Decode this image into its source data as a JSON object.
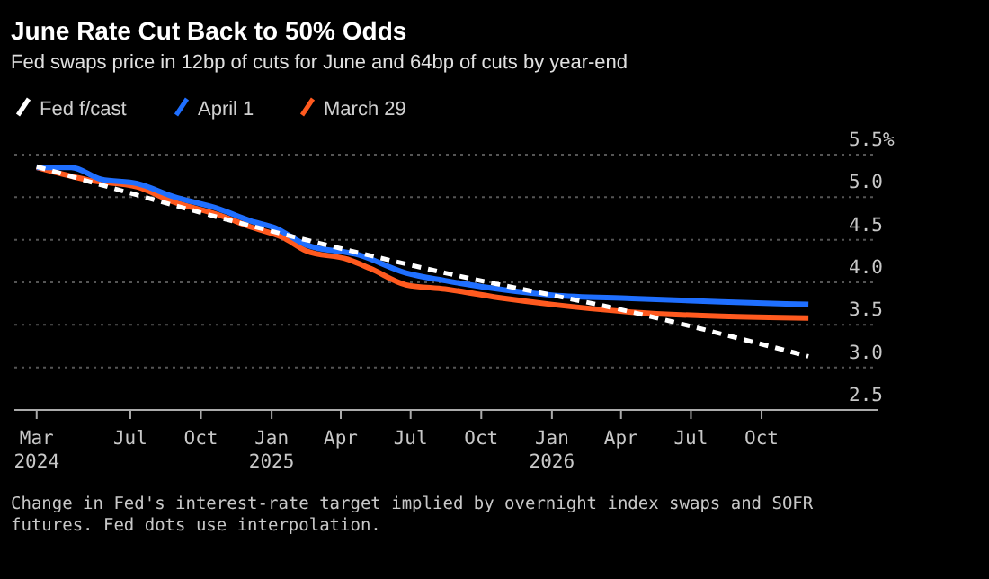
{
  "chart_data": {
    "type": "line",
    "title": "June Rate Cut Back to 50% Odds",
    "subtitle": "Fed swaps price in 12bp of cuts for June and 64bp of cuts by year-end",
    "annotations": [
      "Change in Fed's interest-rate target implied by overnight index swaps and SOFR futures. Fed dots use interpolation."
    ],
    "xlim": [
      "2024-02",
      "2027-03"
    ],
    "xticks": [
      {
        "value": "2024-03",
        "label": "Mar 2024"
      },
      {
        "value": "2024-07",
        "label": "Jul"
      },
      {
        "value": "2024-10",
        "label": "Oct"
      },
      {
        "value": "2025-01",
        "label": "Jan 2025"
      },
      {
        "value": "2025-04",
        "label": "Apr"
      },
      {
        "value": "2025-07",
        "label": "Jul"
      },
      {
        "value": "2025-10",
        "label": "Oct"
      },
      {
        "value": "2026-01",
        "label": "Jan 2026"
      },
      {
        "value": "2026-04",
        "label": "Apr"
      },
      {
        "value": "2026-07",
        "label": "Jul"
      },
      {
        "value": "2026-10",
        "label": "Oct"
      }
    ],
    "ylim": [
      2.5,
      5.5
    ],
    "yticks": [
      2.5,
      {
        "value": 3,
        "label": "3.0"
      },
      3.5,
      {
        "value": 4,
        "label": "4.0"
      },
      4.5,
      {
        "value": 5,
        "label": "5.0"
      },
      {
        "value": 5.5,
        "label": "5.5%"
      }
    ],
    "grid": "y",
    "legend": "top left",
    "series": [
      {
        "name": "Fed f/cast",
        "color": "#ffffff",
        "line_style": "dashed",
        "x": [
          "2024-03",
          "2025-01",
          "2025-08-15",
          "2026-04-15",
          "2026-12"
        ],
        "values": [
          5.36,
          4.6,
          4.11,
          3.65,
          3.13
        ]
      },
      {
        "name": "April 1",
        "color": "#1f6fff",
        "line_style": "solid",
        "x": [
          "2024-03",
          "2024-04-15",
          "2024-05-24",
          "2024-07-10",
          "2024-08-25",
          "2024-10-25",
          "2024-12-05",
          "2025-01-05",
          "2025-02-15",
          "2025-04-25",
          "2025-06-25",
          "2025-08-15",
          "2025-11-01",
          "2026-01-01",
          "2026-04-15",
          "2026-08-10",
          "2026-12"
        ],
        "values": [
          5.35,
          5.35,
          5.21,
          5.16,
          5.01,
          4.86,
          4.72,
          4.64,
          4.44,
          4.32,
          4.11,
          4.02,
          3.91,
          3.85,
          3.81,
          3.77,
          3.74
        ]
      },
      {
        "name": "March 29",
        "color": "#ff5a1f",
        "line_style": "solid",
        "x": [
          "2024-03",
          "2024-05-08",
          "2024-07-10",
          "2024-08-25",
          "2024-10-25",
          "2024-12-05",
          "2025-01-15",
          "2025-02-15",
          "2025-04-10",
          "2025-05-10",
          "2025-06-25",
          "2025-08-15",
          "2025-11-01",
          "2026-01-01",
          "2026-04-15",
          "2026-08-10",
          "2026-12"
        ],
        "values": [
          5.35,
          5.2,
          5.12,
          4.95,
          4.79,
          4.65,
          4.53,
          4.37,
          4.27,
          4.16,
          3.97,
          3.92,
          3.81,
          3.74,
          3.65,
          3.6,
          3.58
        ]
      }
    ]
  }
}
